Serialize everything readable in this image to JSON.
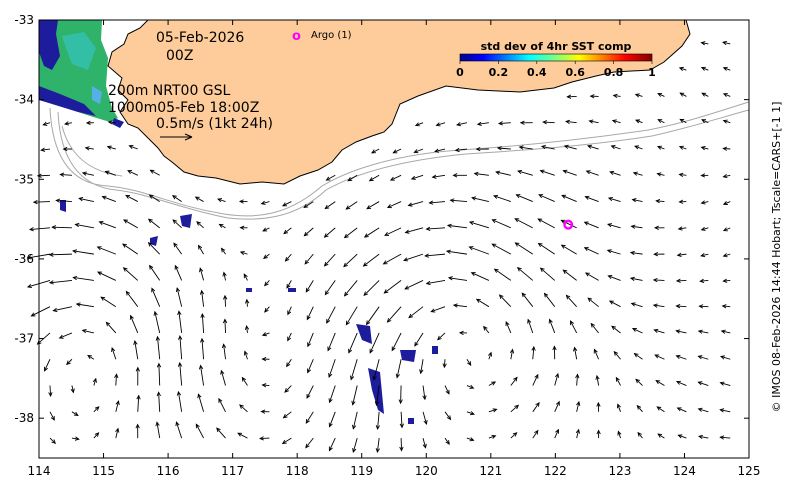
{
  "map": {
    "annotation": {
      "date": "05-Feb-2026",
      "time": "00Z",
      "line1": "200m  NRT00 GSL",
      "line2": "1000m05-Feb 18:00Z",
      "scale": "0.5m/s (1kt 24h)"
    },
    "argo": {
      "legend_symbol": "o",
      "legend_label": "Argo (1)",
      "floats": [
        {
          "lon": 122.2,
          "lat": -35.57
        }
      ],
      "color": "#ff00ff"
    },
    "colorbar": {
      "title": "std dev of 4hr SST comp",
      "ticks": [
        "0",
        "0.2",
        "0.4",
        "0.6",
        "0.8",
        "1"
      ],
      "range": [
        0,
        1
      ]
    },
    "x_ticks": [
      "114",
      "115",
      "116",
      "117",
      "118",
      "119",
      "120",
      "121",
      "122",
      "123",
      "124",
      "125"
    ],
    "y_ticks": [
      "-33",
      "-34",
      "-35",
      "-36",
      "-37",
      "-38"
    ],
    "extent": {
      "lon": [
        114,
        125
      ],
      "lat": [
        -38.5,
        -33
      ]
    },
    "credit": "© IMOS 08-Feb-2026 14:44 Hobart; Tscale=CARS+[-1 1]",
    "colors": {
      "land": "#fdcc9a",
      "arrow": "#000000",
      "isobath": "#a8a8a8",
      "sst_low": "#1c1c9c",
      "sst_mid": "#2fb36a"
    }
  }
}
